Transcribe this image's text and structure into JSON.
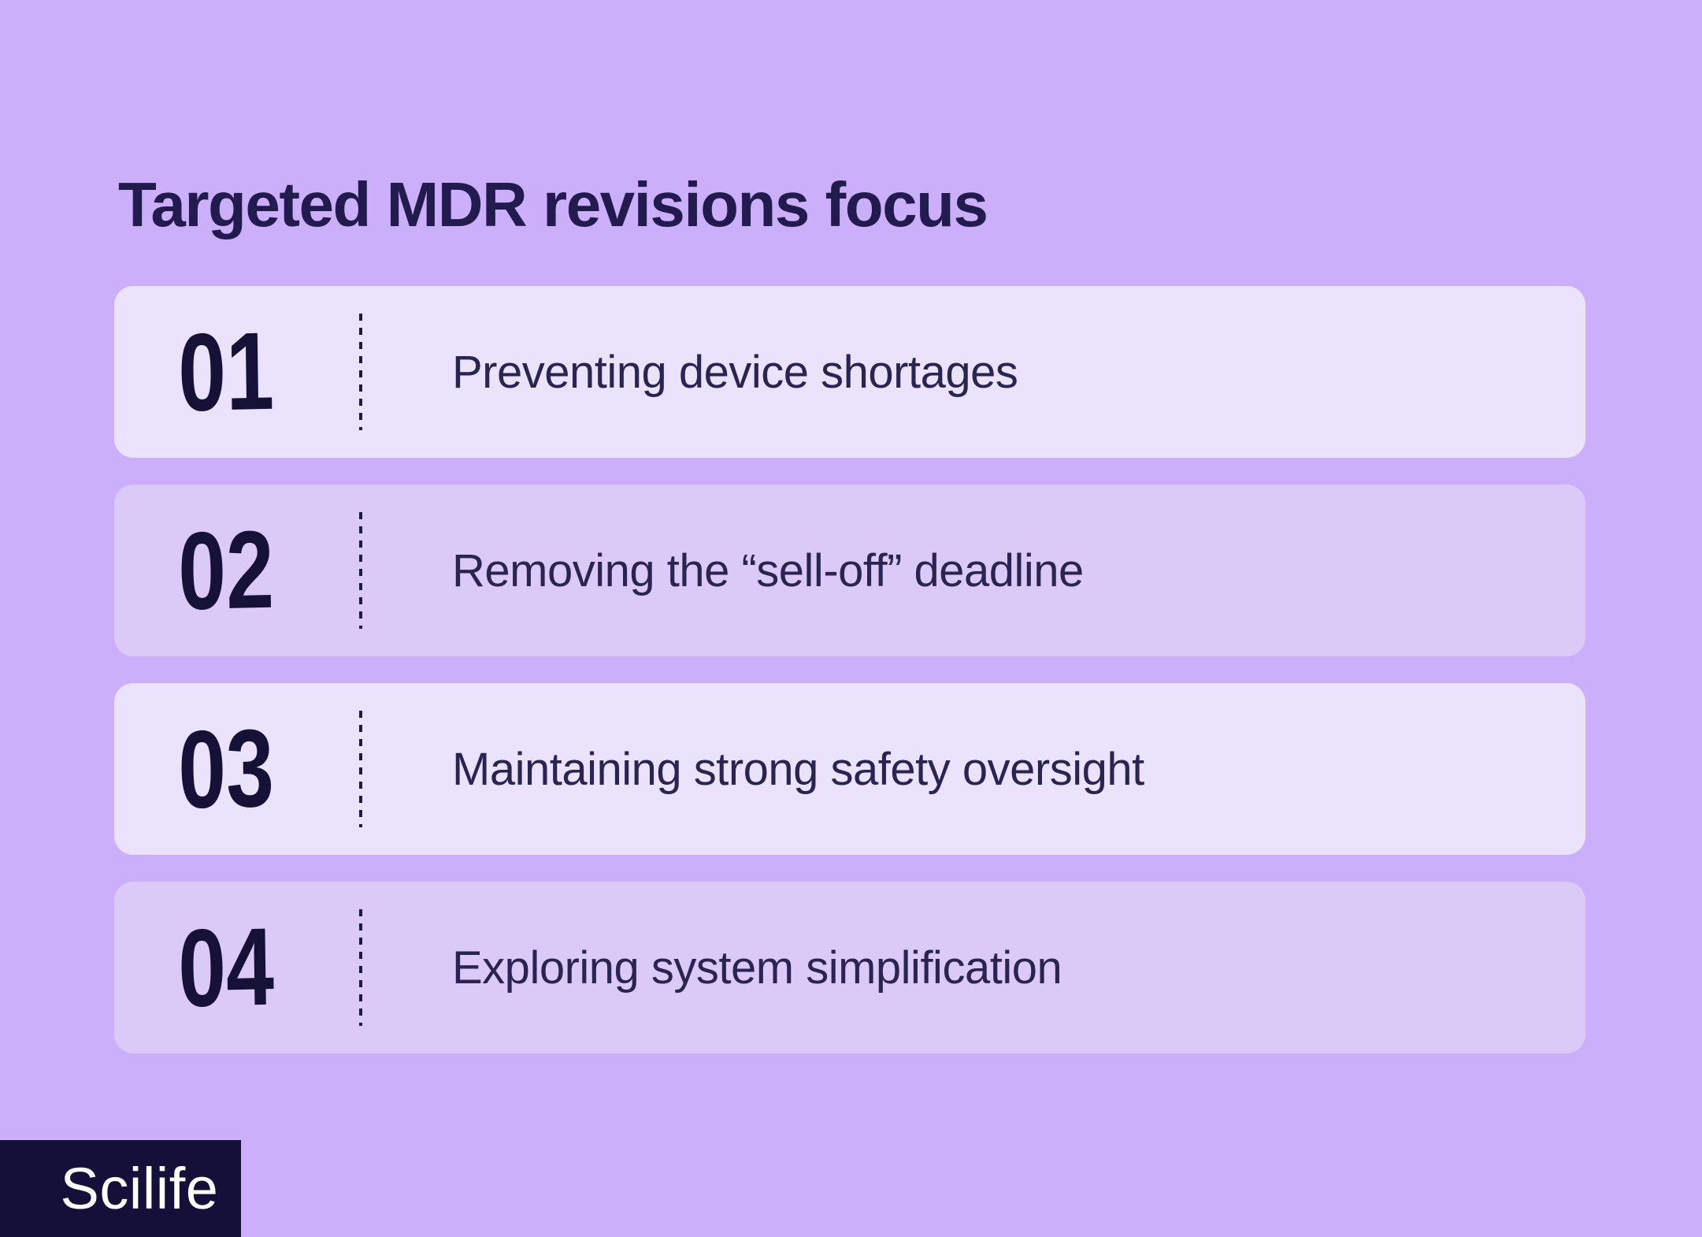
{
  "title": "Targeted MDR revisions focus",
  "items": [
    {
      "number": "01",
      "label": "Preventing device shortages"
    },
    {
      "number": "02",
      "label": "Removing the “sell-off” deadline"
    },
    {
      "number": "03",
      "label": "Maintaining strong safety oversight"
    },
    {
      "number": "04",
      "label": "Exploring system simplification"
    }
  ],
  "logo": {
    "text": "Scilife"
  },
  "colors": {
    "background": "#cbaffa",
    "card_light": "#ebe3fc",
    "card_dark": "#dbcaf8",
    "title_ink": "#221c4e",
    "number_ink": "#161237",
    "label_ink": "#2a2453",
    "divider_ink": "#1e1944",
    "logo_background": "#14103a",
    "logo_text": "#ffffff"
  }
}
